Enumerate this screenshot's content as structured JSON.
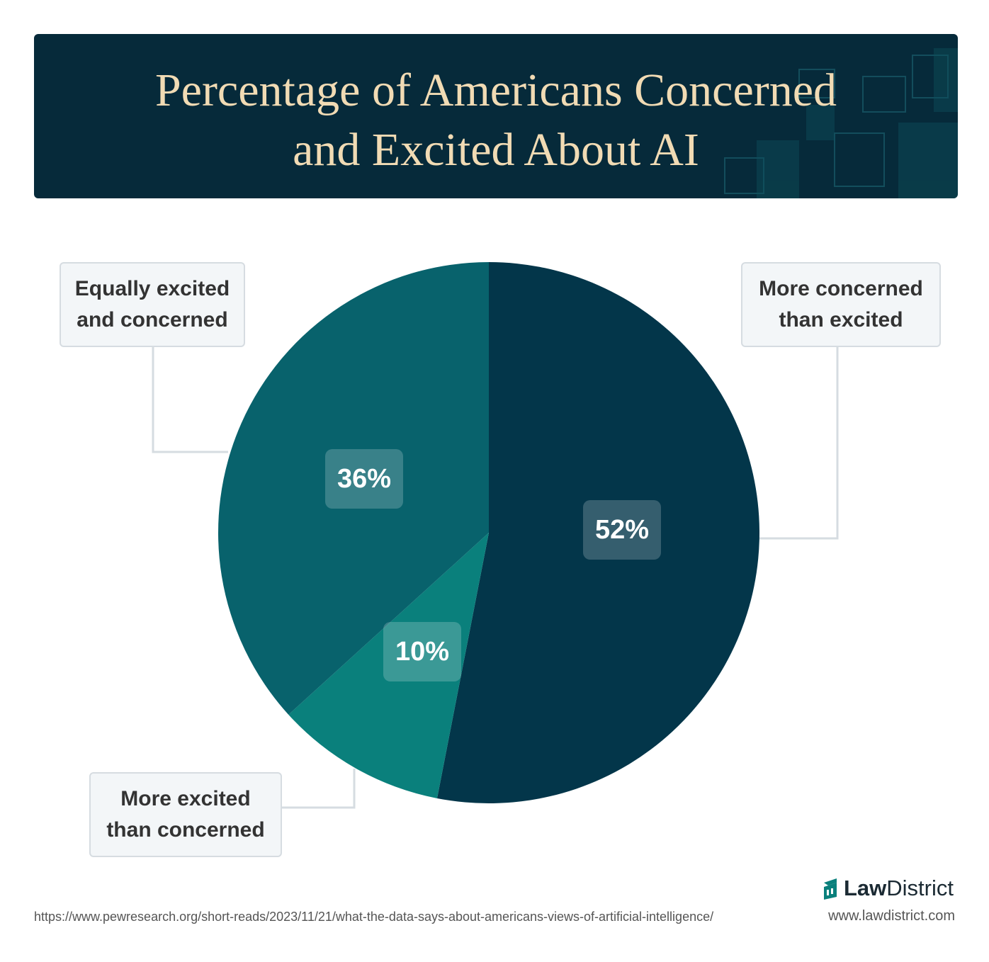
{
  "chart_data": {
    "type": "pie",
    "title": "Percentage of Americans Concerned and Excited About AI",
    "categories": [
      "More concerned than excited",
      "More excited than concerned",
      "Equally excited and concerned"
    ],
    "values": [
      52,
      10,
      36
    ],
    "value_labels": [
      "52%",
      "10%",
      "36%"
    ],
    "colors": [
      "#03364a",
      "#0a807c",
      "#08626c"
    ],
    "source": "https://www.pewresearch.org/short-reads/2023/11/21/what-the-data-says-about-americans-views-of-artificial-intelligence/",
    "brand": {
      "bold": "Law",
      "regular": "District",
      "url": "www.lawdistrict.com"
    }
  }
}
